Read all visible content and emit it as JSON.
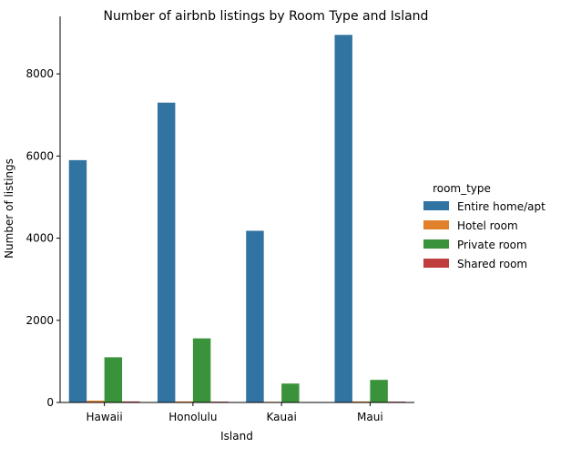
{
  "chart_data": {
    "type": "bar",
    "title": "Number of airbnb listings by Room Type and Island",
    "xlabel": "Island",
    "ylabel": "Number of listings",
    "categories": [
      "Hawaii",
      "Honolulu",
      "Kauai",
      "Maui"
    ],
    "ylim": [
      0,
      9400
    ],
    "yticks": [
      0,
      2000,
      4000,
      6000,
      8000
    ],
    "grid": false,
    "legend": {
      "title": "room_type",
      "placement": "right"
    },
    "series": [
      {
        "name": "Entire home/apt",
        "color": "#3274a1",
        "values": [
          5900,
          7300,
          4180,
          8950
        ]
      },
      {
        "name": "Hotel room",
        "color": "#e1812c",
        "values": [
          45,
          25,
          15,
          25
        ]
      },
      {
        "name": "Private room",
        "color": "#3a923a",
        "values": [
          1100,
          1560,
          460,
          550
        ]
      },
      {
        "name": "Shared room",
        "color": "#c03d3e",
        "values": [
          25,
          20,
          5,
          20
        ]
      }
    ]
  }
}
